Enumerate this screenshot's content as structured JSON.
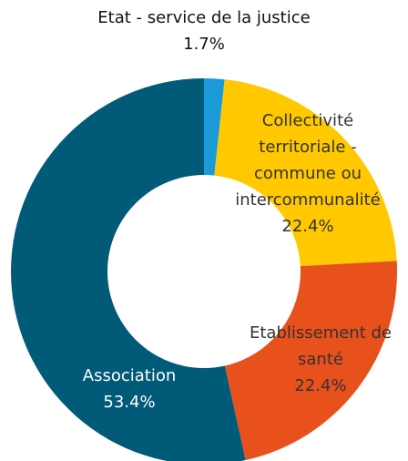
{
  "chart_data": {
    "type": "donut",
    "categories": [
      "Etat - service de la justice",
      "Collectivité territoriale - commune ou intercommunalité",
      "Etablissement de santé",
      "Association"
    ],
    "values": [
      1.7,
      22.4,
      22.4,
      53.4
    ],
    "value_labels": [
      "1.7%",
      "22.4%",
      "22.4%",
      "53.4%"
    ],
    "colors": [
      "#1a9ad6",
      "#ffc800",
      "#e8501c",
      "#005a78"
    ]
  }
}
